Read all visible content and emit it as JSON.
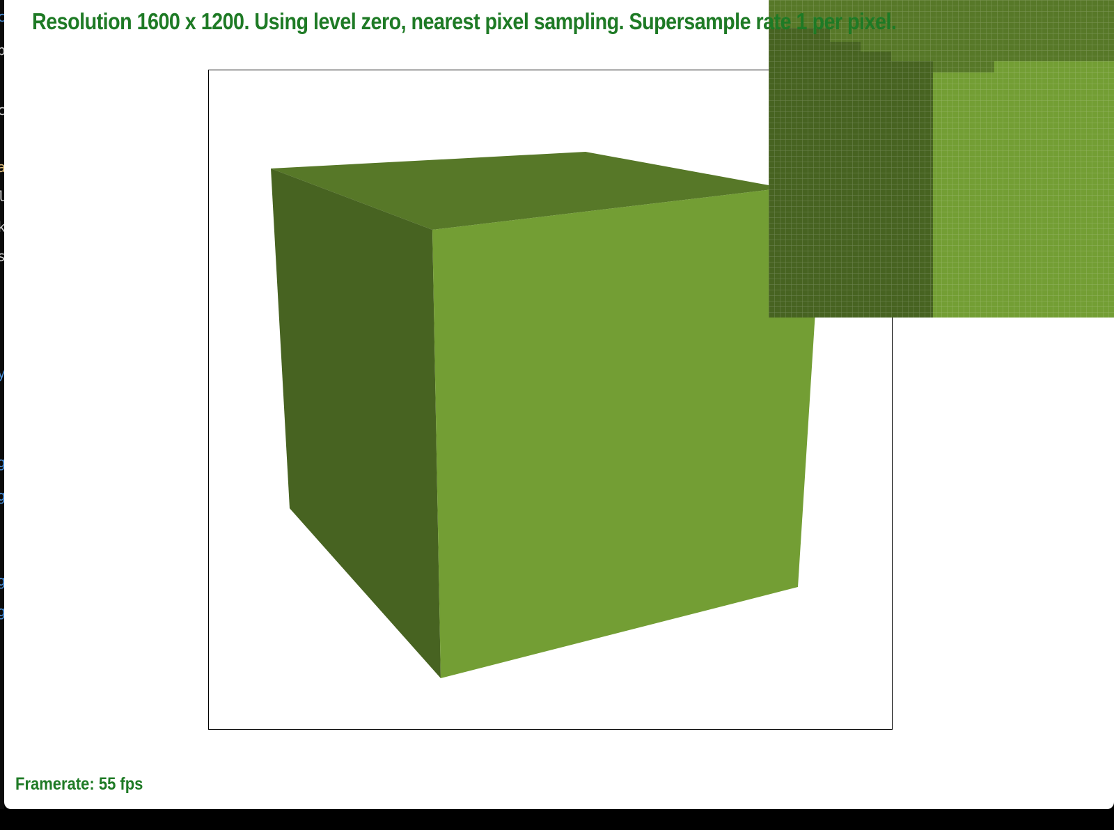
{
  "viewer": {
    "status_text": "Resolution 1600 x 1200. Using level zero, nearest pixel sampling. Supersample rate 1 per pixel.",
    "framerate_text": "Framerate: 55 fps"
  },
  "scene": {
    "object": "cube",
    "colors": {
      "top_face": "#577828",
      "left_face": "#476321",
      "front_face": "#739e34",
      "frame_border": "#000000",
      "background": "#ffffff"
    }
  },
  "zoom_inset": {
    "colors": {
      "top_band": "#577828",
      "left_region": "#476321",
      "right_region": "#739e34",
      "grid_line": "rgba(255,255,255,0.22)"
    }
  },
  "accent_color": "#1e7a25"
}
